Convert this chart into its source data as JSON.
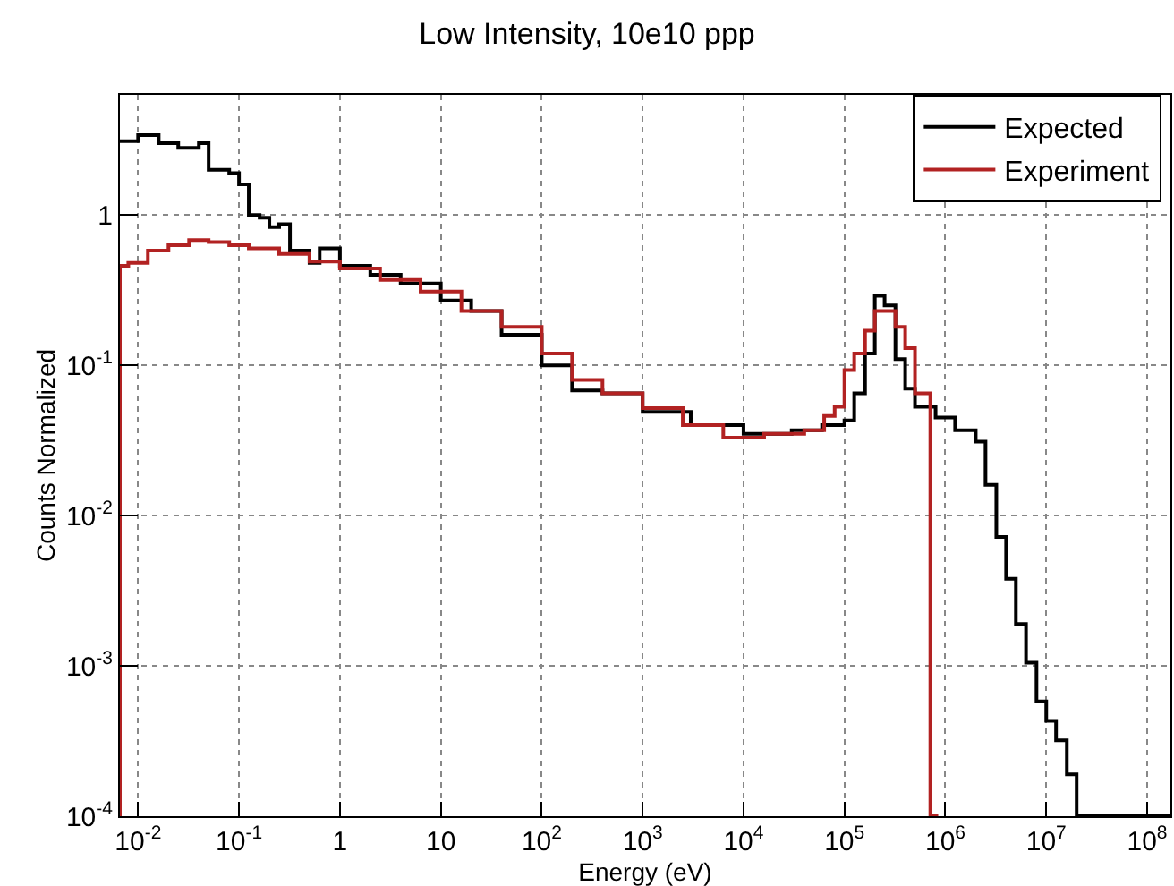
{
  "chart_data": {
    "type": "step",
    "title": "Low Intensity, 10e10 ppp",
    "xlabel": "Energy (eV)",
    "ylabel": "Counts Normalized",
    "log": "xy",
    "grid": true,
    "legend": "top right",
    "line_style": "solid",
    "marker": "none",
    "xlim": [
      0.0066,
      170000000
    ],
    "ylim": [
      0.0001,
      6.3
    ],
    "xticks": [
      {
        "value": 0.01,
        "label": "10$^{-2}$"
      },
      {
        "value": 0.1,
        "label": "10$^{-1}$"
      },
      1,
      10,
      {
        "value": 100,
        "label": "10$^{2}$"
      },
      {
        "value": 1000,
        "label": "10$^{3}$"
      },
      {
        "value": 10000,
        "label": "10$^{4}$"
      },
      {
        "value": 100000,
        "label": "10$^{5}$"
      },
      {
        "value": 1000000,
        "label": "10$^{6}$"
      },
      {
        "value": 10000000,
        "label": "10$^{7}$"
      },
      {
        "value": 100000000,
        "label": "10$^{8}$"
      }
    ],
    "yticks": [
      {
        "value": 0.0001,
        "label": "10$^{-4}$"
      },
      {
        "value": 0.001,
        "label": "10$^{-3}$"
      },
      {
        "value": 0.01,
        "label": "10$^{-2}$"
      },
      {
        "value": 0.1,
        "label": "10$^{-1}$"
      },
      1
    ],
    "series": [
      {
        "name": "Expected",
        "color": "#000000",
        "x": [
          0.0066,
          0.01,
          0.016,
          0.025,
          0.04,
          0.05,
          0.08,
          0.1,
          0.125,
          0.16,
          0.2,
          0.25,
          0.32,
          0.5,
          0.63,
          1,
          2,
          4,
          10,
          20,
          40,
          100,
          200,
          400,
          1000,
          3000,
          10000,
          30000,
          60000,
          100000,
          125000,
          160000,
          200000,
          250000,
          320000,
          400000,
          500000,
          800000,
          1250000,
          2000000,
          2500000,
          3200000,
          4000000,
          5000000,
          6300000,
          8000000,
          10000000,
          12500000,
          16000000,
          20000000,
          170000000
        ],
        "values": [
          3.1,
          3.4,
          3.0,
          2.8,
          3.0,
          2.0,
          1.9,
          1.6,
          1.0,
          0.96,
          0.83,
          0.87,
          0.58,
          0.48,
          0.6,
          0.46,
          0.4,
          0.35,
          0.27,
          0.23,
          0.16,
          0.1,
          0.068,
          0.065,
          0.049,
          0.04,
          0.035,
          0.037,
          0.04,
          0.043,
          0.065,
          0.12,
          0.29,
          0.25,
          0.11,
          0.07,
          0.053,
          0.045,
          0.037,
          0.031,
          0.016,
          0.0072,
          0.0038,
          0.0019,
          0.00105,
          0.00058,
          0.00043,
          0.00032,
          0.00019,
          0.0001,
          0.0001
        ]
      },
      {
        "name": "Experiment",
        "color": "#b22222",
        "x": [
          0.0066,
          0.0066,
          0.008,
          0.0125,
          0.02,
          0.032,
          0.05,
          0.08,
          0.125,
          0.25,
          0.5,
          1,
          2.5,
          6.3,
          16,
          40,
          100,
          200,
          400,
          1000,
          2500,
          6300,
          16000,
          40000,
          63000,
          80000,
          100000,
          125000,
          160000,
          200000,
          320000,
          400000,
          500000,
          710000,
          850000
        ],
        "values": [
          0.0001,
          0.46,
          0.48,
          0.58,
          0.63,
          0.68,
          0.66,
          0.63,
          0.6,
          0.55,
          0.49,
          0.44,
          0.37,
          0.31,
          0.23,
          0.18,
          0.12,
          0.08,
          0.065,
          0.052,
          0.04,
          0.033,
          0.035,
          0.037,
          0.046,
          0.053,
          0.093,
          0.12,
          0.17,
          0.23,
          0.18,
          0.13,
          0.065,
          0.0001,
          0.0001
        ]
      }
    ]
  }
}
